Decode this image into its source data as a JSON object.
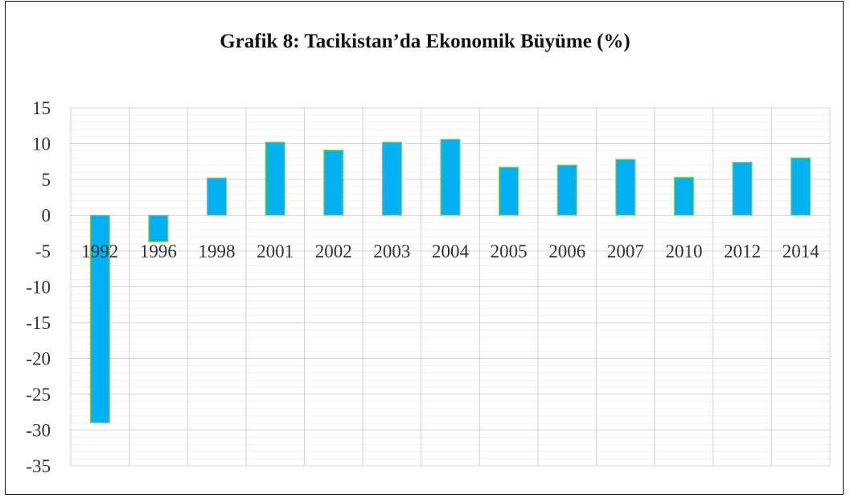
{
  "chart_data": {
    "type": "bar",
    "title": "Grafik 8: Tacikistan’da Ekonomik Büyüme (%)",
    "categories": [
      "1992",
      "1996",
      "1998",
      "2001",
      "2002",
      "2003",
      "2004",
      "2005",
      "2006",
      "2007",
      "2010",
      "2012",
      "2014"
    ],
    "values": [
      -29,
      -3.7,
      5.2,
      10.2,
      9.1,
      10.2,
      10.6,
      6.7,
      7.0,
      7.8,
      5.3,
      7.4,
      8.0
    ],
    "ylim": [
      -35,
      15
    ],
    "yticks": [
      15,
      10,
      5,
      0,
      -5,
      -10,
      -15,
      -20,
      -25,
      -30,
      -35
    ],
    "ytick_labels": [
      "15",
      "10",
      "5",
      "0",
      "-5",
      "-10",
      "-15",
      "-20",
      "-25",
      "-30",
      "-35"
    ],
    "xlabel": "",
    "ylabel": "",
    "grid": true,
    "legend": "none",
    "bar_color": "#00b0f0",
    "bar_edge_color": "#92d050"
  }
}
